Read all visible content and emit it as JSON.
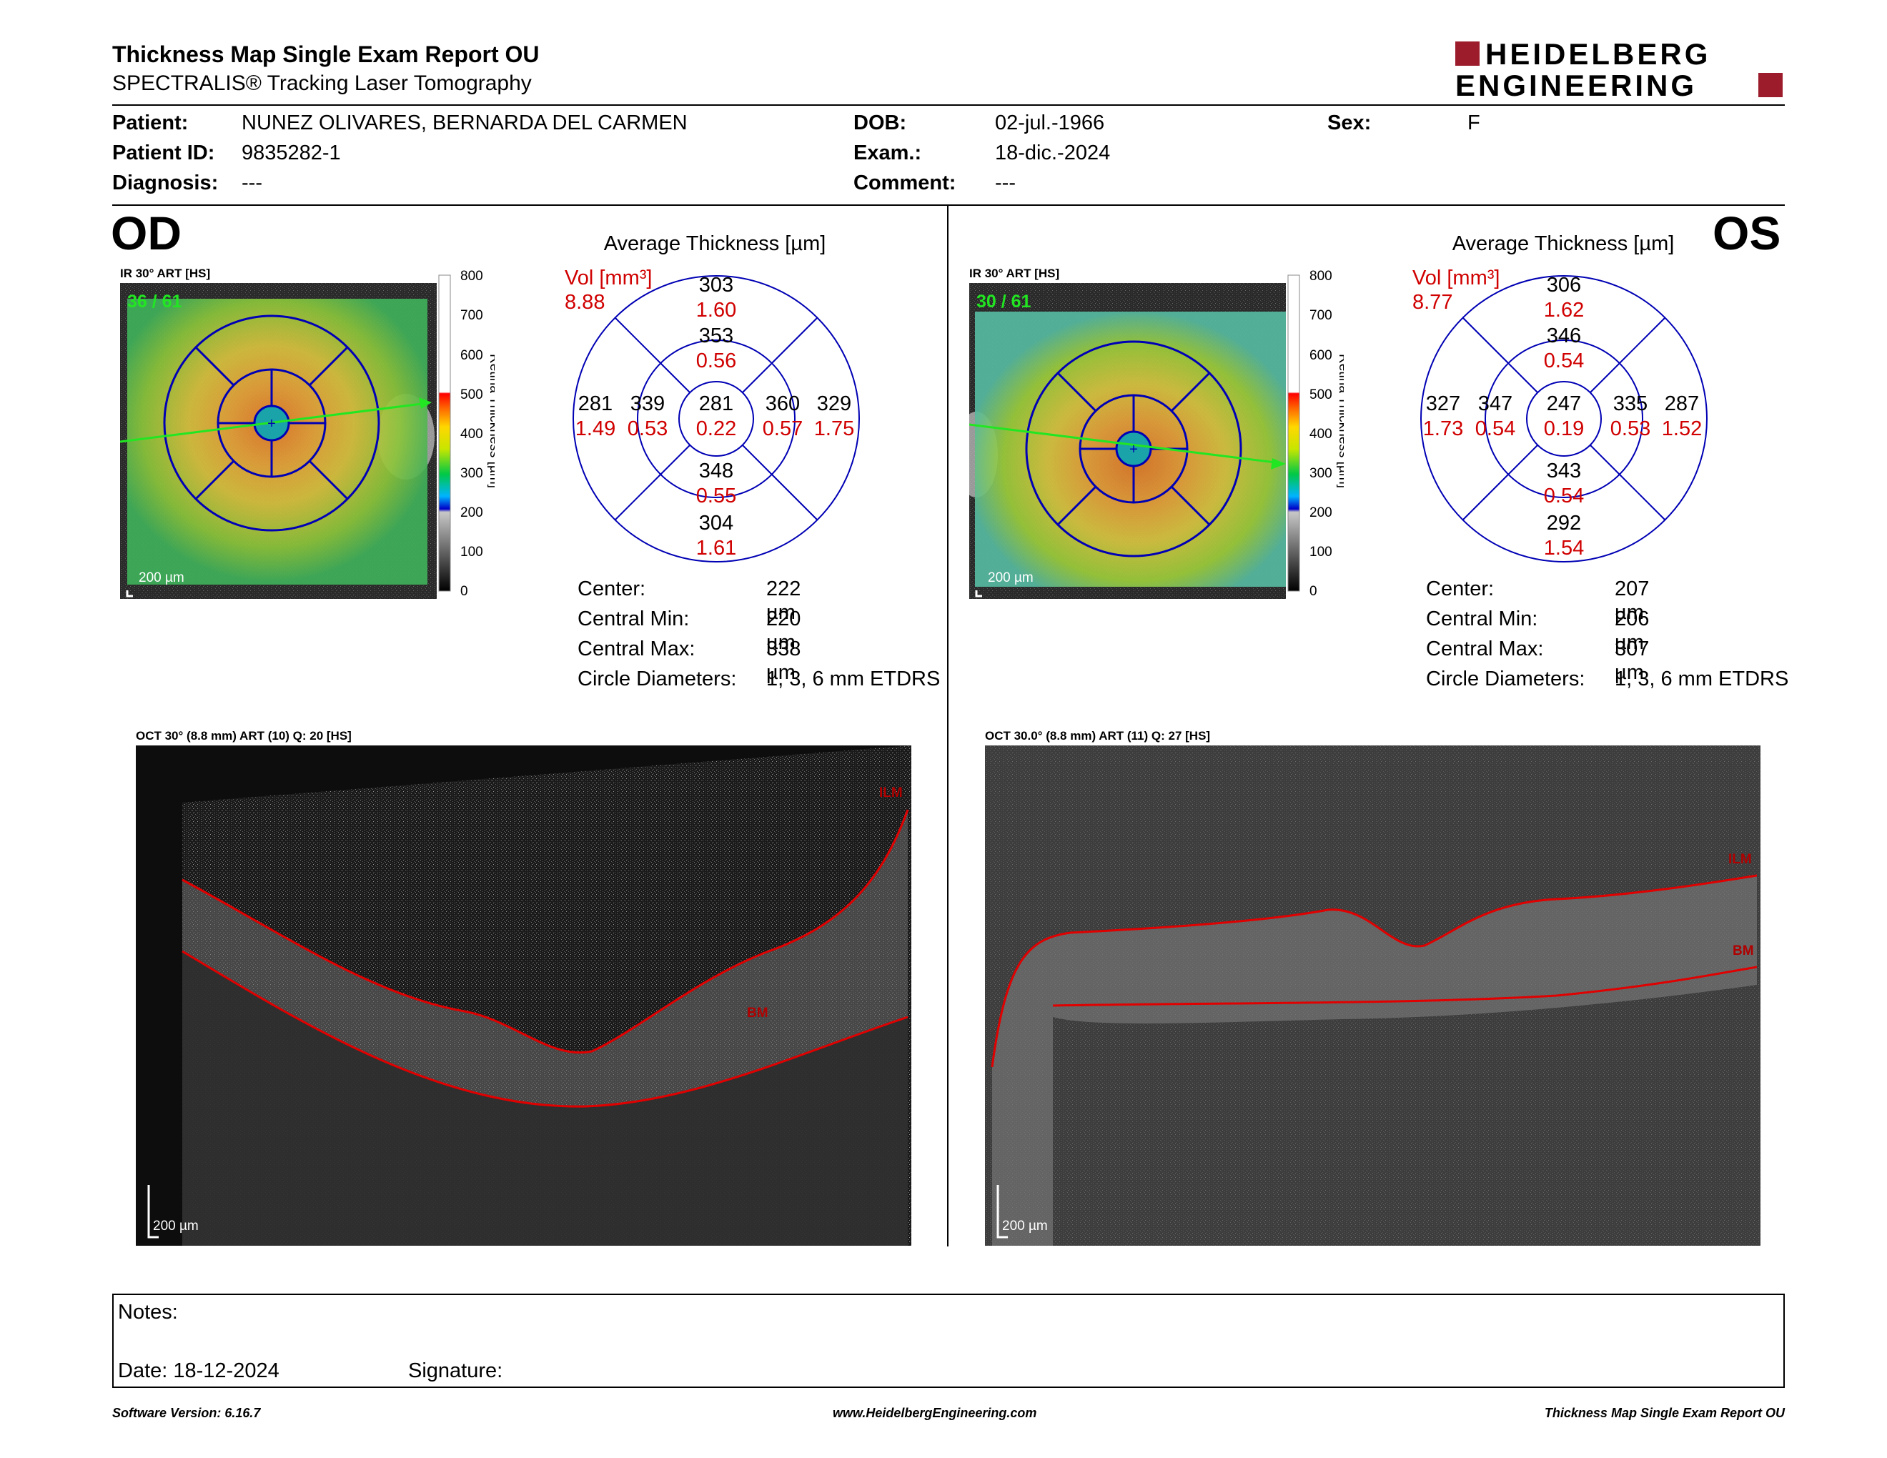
{
  "header": {
    "title": "Thickness Map Single Exam Report OU",
    "subtitle": "SPECTRALIS® Tracking Laser Tomography",
    "logo_line1": "HEIDELBERG",
    "logo_line2": "ENGINEERING",
    "brand_color": "#9c1c2c"
  },
  "patient": {
    "patient_label": "Patient:",
    "patient_name": "NUNEZ OLIVARES, BERNARDA DEL CARMEN",
    "id_label": "Patient ID:",
    "id_value": "9835282-1",
    "diagnosis_label": "Diagnosis:",
    "diagnosis_value": "---",
    "dob_label": "DOB:",
    "dob_value": "02-jul.-1966",
    "exam_label": "Exam.:",
    "exam_value": "18-dic.-2024",
    "comment_label": "Comment:",
    "comment_value": "---",
    "sex_label": "Sex:",
    "sex_value": "F"
  },
  "od": {
    "eye": "OD",
    "ir_title": "IR 30° ART [HS]",
    "frames": "36 / 61",
    "scale_label": "200 µm",
    "avg_title": "Average Thickness [µm]",
    "vol_label": "Vol [mm³]",
    "vol_value": "8.88",
    "etdrs": {
      "superior_outer": {
        "t": "303",
        "v": "1.60"
      },
      "superior_inner": {
        "t": "353",
        "v": "0.56"
      },
      "nasal_outer": {
        "t": "281",
        "v": "1.49"
      },
      "nasal_inner": {
        "t": "339",
        "v": "0.53"
      },
      "center": {
        "t": "281",
        "v": "0.22"
      },
      "temporal_inner": {
        "t": "360",
        "v": "0.57"
      },
      "temporal_outer": {
        "t": "329",
        "v": "1.75"
      },
      "inferior_inner": {
        "t": "348",
        "v": "0.55"
      },
      "inferior_outer": {
        "t": "304",
        "v": "1.61"
      }
    },
    "stats": [
      {
        "label": "Center:",
        "value": "222 µm"
      },
      {
        "label": "Central Min:",
        "value": "220 µm"
      },
      {
        "label": "Central Max:",
        "value": "338 µm"
      },
      {
        "label": "Circle Diameters:",
        "value": "1, 3, 6 mm ETDRS"
      }
    ],
    "oct_title": "OCT 30° (8.8 mm) ART (10) Q: 20 [HS]",
    "oct_scale": "200 µm",
    "ilm": "ILM",
    "bm": "BM"
  },
  "os": {
    "eye": "OS",
    "ir_title": "IR 30° ART [HS]",
    "frames": "30 / 61",
    "scale_label": "200 µm",
    "avg_title": "Average Thickness [µm]",
    "vol_label": "Vol [mm³]",
    "vol_value": "8.77",
    "etdrs": {
      "superior_outer": {
        "t": "306",
        "v": "1.62"
      },
      "superior_inner": {
        "t": "346",
        "v": "0.54"
      },
      "nasal_outer": {
        "t": "287",
        "v": "1.52"
      },
      "nasal_inner": {
        "t": "335",
        "v": "0.53"
      },
      "center": {
        "t": "247",
        "v": "0.19"
      },
      "temporal_inner": {
        "t": "347",
        "v": "0.54"
      },
      "temporal_outer": {
        "t": "327",
        "v": "1.73"
      },
      "inferior_inner": {
        "t": "343",
        "v": "0.54"
      },
      "inferior_outer": {
        "t": "292",
        "v": "1.54"
      }
    },
    "stats": [
      {
        "label": "Center:",
        "value": "207 µm"
      },
      {
        "label": "Central Min:",
        "value": "206 µm"
      },
      {
        "label": "Central Max:",
        "value": "307 µm"
      },
      {
        "label": "Circle Diameters:",
        "value": "1, 3, 6 mm ETDRS"
      }
    ],
    "oct_title": "OCT 30.0° (8.8 mm) ART (11) Q: 27 [HS]",
    "oct_scale": "200 µm",
    "ilm": "ILM",
    "bm": "BM"
  },
  "colorbar": {
    "ticks": [
      "800",
      "700",
      "600",
      "500",
      "400",
      "300",
      "200",
      "100",
      "0"
    ],
    "label": "Retina Thickness [µm]"
  },
  "notes": {
    "notes_label": "Notes:",
    "date_label": "Date: 18-12-2024",
    "signature_label": "Signature:"
  },
  "footer": {
    "left": "Software Version: 6.16.7",
    "center": "www.HeidelbergEngineering.com",
    "right": "Thickness Map Single Exam Report OU"
  }
}
